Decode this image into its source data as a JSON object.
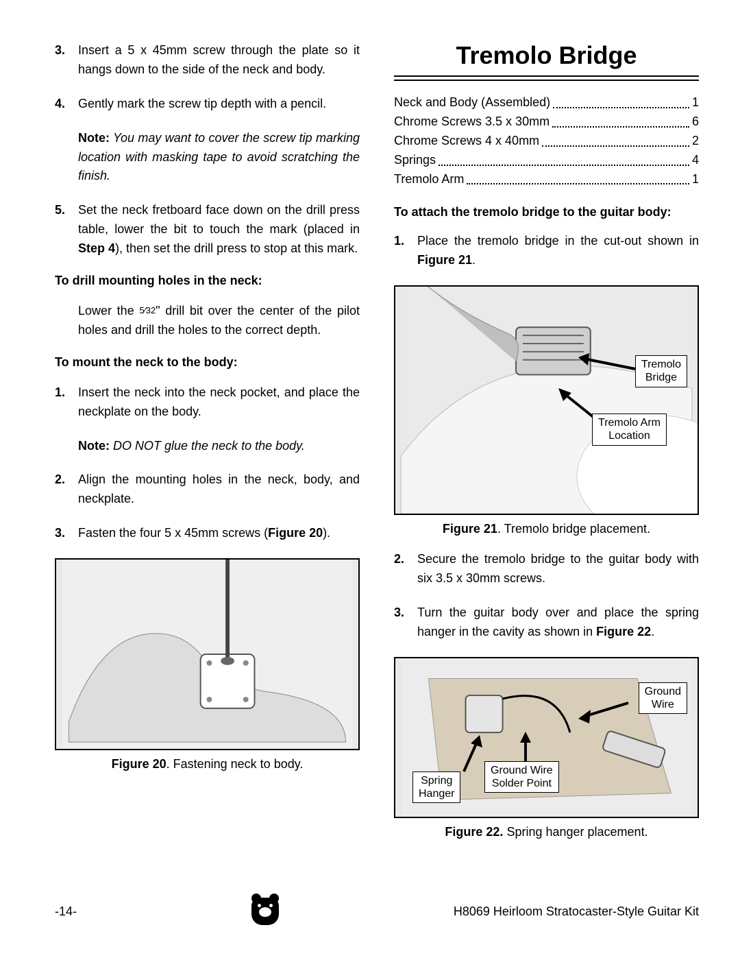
{
  "left": {
    "steps_a": [
      {
        "n": "3.",
        "t": "Insert a 5 x 45mm screw through the plate so it hangs down to the side of the neck and body."
      },
      {
        "n": "4.",
        "t": "Gently mark the screw tip depth with a pencil."
      }
    ],
    "note1_label": "Note:",
    "note1_text": " You may want to cover the screw tip marking location with masking tape to avoid scratching the finish.",
    "step5_n": "5.",
    "step5_t": "Set the neck fretboard face down on the drill press table, lower the bit to touch the mark (placed in ",
    "step5_bold": "Step 4",
    "step5_t2": "), then set the drill press to stop at this mark.",
    "sub1": "To drill mounting holes in the neck:",
    "drill_pre": "Lower the ",
    "drill_frac_num": "5",
    "drill_frac_den": "32",
    "drill_post": "\" drill bit over the center of the pilot holes and drill the holes to the correct depth.",
    "sub2": "To mount the neck to the body:",
    "mount1_n": "1.",
    "mount1_t": "Insert the neck into the neck pocket, and place the neckplate on the body.",
    "note2_label": "Note:",
    "note2_text": " DO NOT glue the neck to the body.",
    "mount2_n": "2.",
    "mount2_t": "Align the mounting holes in the neck, body, and neckplate.",
    "mount3_n": "3.",
    "mount3_t": "Fasten the four 5 x 45mm screws (",
    "mount3_bold": "Figure 20",
    "mount3_t2": ").",
    "fig20_cap_b": "Figure 20",
    "fig20_cap_t": ". Fastening neck to body."
  },
  "right": {
    "heading": "Tremolo Bridge",
    "parts": [
      {
        "name": "Neck and Body (Assembled)",
        "qty": "1"
      },
      {
        "name": "Chrome Screws 3.5 x 30mm",
        "qty": "6"
      },
      {
        "name": "Chrome Screws 4 x 40mm",
        "qty": "2"
      },
      {
        "name": "Springs",
        "qty": "4"
      },
      {
        "name": "Tremolo Arm",
        "qty": "1"
      }
    ],
    "sub": "To attach the tremolo bridge to the guitar body:",
    "s1_n": "1.",
    "s1_t": "Place the tremolo bridge in the cut-out shown in ",
    "s1_b": "Figure 21",
    "s1_t2": ".",
    "fig21_label1": "Tremolo\nBridge",
    "fig21_label2": "Tremolo Arm\nLocation",
    "fig21_cap_b": "Figure 21",
    "fig21_cap_t": ". Tremolo bridge placement.",
    "s2_n": "2.",
    "s2_t": "Secure the tremolo bridge to the guitar body with six 3.5 x 30mm screws.",
    "s3_n": "3.",
    "s3_t": "Turn the guitar body over and place the spring hanger in the cavity as shown in ",
    "s3_b": "Figure 22",
    "s3_t2": ".",
    "fig22_l1": "Ground\nWire",
    "fig22_l2": "Ground Wire\nSolder Point",
    "fig22_l3": "Spring\nHanger",
    "fig22_cap_b": "Figure 22.",
    "fig22_cap_t": " Spring hanger placement."
  },
  "footer": {
    "page": "-14-",
    "title": "H8069 Heirloom Stratocaster-Style Guitar Kit"
  }
}
